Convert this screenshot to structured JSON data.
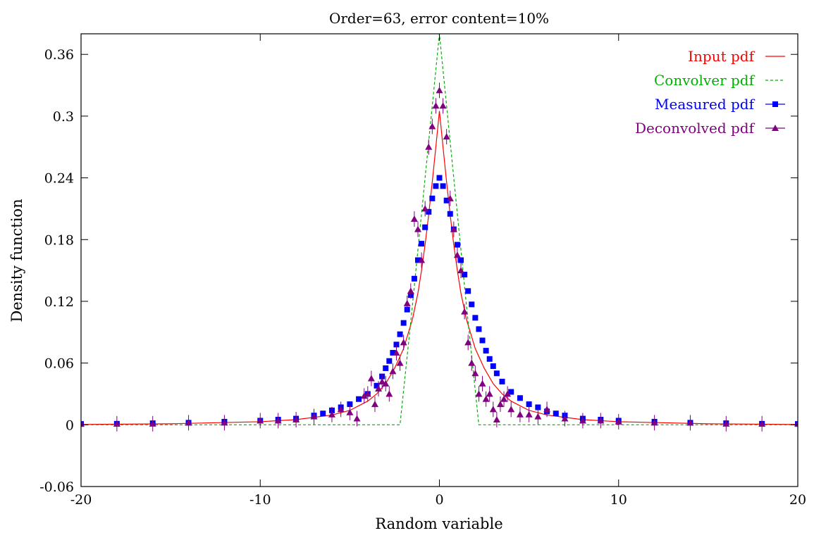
{
  "chart_data": {
    "type": "scatter",
    "title": "Order=63, error content=10%",
    "xlabel": "Random variable",
    "ylabel": "Density function",
    "xlim": [
      -20,
      20
    ],
    "ylim": [
      -0.06,
      0.38
    ],
    "xticks": [
      -20,
      -10,
      0,
      10,
      20
    ],
    "xtick_labels": [
      "-20",
      "-10",
      "0",
      "10",
      "20"
    ],
    "yticks": [
      -0.06,
      0,
      0.06,
      0.12,
      0.18,
      0.24,
      0.3,
      0.36
    ],
    "ytick_labels": [
      "-0.06",
      "0",
      "0.06",
      "0.12",
      "0.18",
      "0.24",
      "0.3",
      "0.36"
    ],
    "grid": false,
    "legend_position": "top-right",
    "series": [
      {
        "name": "Input pdf",
        "style": "line",
        "color": "#ff0000",
        "x": [
          -20,
          -15,
          -10,
          -8,
          -6,
          -5,
          -4,
          -3.5,
          -3,
          -2.5,
          -2,
          -1.5,
          -1.2,
          -1,
          -0.8,
          -0.6,
          -0.4,
          -0.2,
          0,
          0.2,
          0.4,
          0.6,
          0.8,
          1,
          1.2,
          1.5,
          2,
          2.5,
          3,
          3.5,
          4,
          5,
          6,
          8,
          10,
          15,
          20
        ],
        "y": [
          0.0003,
          0.001,
          0.003,
          0.005,
          0.0095,
          0.014,
          0.023,
          0.03,
          0.04,
          0.055,
          0.074,
          0.103,
          0.128,
          0.15,
          0.175,
          0.204,
          0.236,
          0.27,
          0.305,
          0.27,
          0.236,
          0.204,
          0.175,
          0.15,
          0.128,
          0.103,
          0.074,
          0.055,
          0.04,
          0.03,
          0.023,
          0.014,
          0.0095,
          0.005,
          0.003,
          0.001,
          0.0003
        ]
      },
      {
        "name": "Convolver pdf",
        "style": "dashed-line",
        "color": "#00b000",
        "x": [
          -20,
          -2.2,
          -1.6,
          -1.2,
          -0.8,
          -0.4,
          0,
          0.4,
          0.8,
          1.2,
          1.6,
          2.2,
          20
        ],
        "y": [
          0,
          0,
          0.1,
          0.17,
          0.24,
          0.31,
          0.38,
          0.31,
          0.24,
          0.17,
          0.1,
          0,
          0
        ]
      },
      {
        "name": "Measured pdf",
        "style": "squares",
        "color": "#0000ff",
        "x": [
          -20,
          -18,
          -16,
          -14,
          -12,
          -10,
          -9,
          -8,
          -7,
          -6.5,
          -6,
          -5.5,
          -5,
          -4.5,
          -4,
          -3.5,
          -3.2,
          -3,
          -2.8,
          -2.6,
          -2.4,
          -2.2,
          -2,
          -1.8,
          -1.6,
          -1.4,
          -1.2,
          -1,
          -0.8,
          -0.6,
          -0.4,
          -0.2,
          0,
          0.2,
          0.4,
          0.6,
          0.8,
          1,
          1.2,
          1.4,
          1.6,
          1.8,
          2,
          2.2,
          2.4,
          2.6,
          2.8,
          3,
          3.2,
          3.5,
          4,
          4.5,
          5,
          5.5,
          6,
          6.5,
          7,
          8,
          9,
          10,
          12,
          14,
          16,
          18,
          20
        ],
        "y": [
          0.0008,
          0.001,
          0.0015,
          0.002,
          0.003,
          0.004,
          0.005,
          0.006,
          0.009,
          0.011,
          0.014,
          0.017,
          0.02,
          0.025,
          0.03,
          0.038,
          0.047,
          0.055,
          0.062,
          0.07,
          0.078,
          0.088,
          0.099,
          0.112,
          0.126,
          0.142,
          0.16,
          0.176,
          0.192,
          0.207,
          0.22,
          0.232,
          0.24,
          0.232,
          0.218,
          0.205,
          0.19,
          0.175,
          0.16,
          0.146,
          0.13,
          0.117,
          0.104,
          0.093,
          0.082,
          0.072,
          0.064,
          0.057,
          0.05,
          0.042,
          0.032,
          0.026,
          0.02,
          0.017,
          0.013,
          0.011,
          0.009,
          0.006,
          0.005,
          0.004,
          0.003,
          0.002,
          0.0015,
          0.001,
          0.0008
        ]
      },
      {
        "name": "Deconvolved pdf",
        "style": "triangles",
        "color": "#800080",
        "x": [
          -20,
          -18,
          -16,
          -14,
          -12,
          -10,
          -9,
          -8,
          -7,
          -6,
          -5.5,
          -5,
          -4.6,
          -4.2,
          -4,
          -3.8,
          -3.6,
          -3.4,
          -3.2,
          -3,
          -2.8,
          -2.6,
          -2.4,
          -2.2,
          -2,
          -1.8,
          -1.6,
          -1.4,
          -1.2,
          -1,
          -0.8,
          -0.6,
          -0.4,
          -0.2,
          0,
          0.2,
          0.4,
          0.6,
          0.8,
          1,
          1.2,
          1.4,
          1.6,
          1.8,
          2,
          2.2,
          2.4,
          2.6,
          2.8,
          3,
          3.2,
          3.4,
          3.6,
          3.8,
          4,
          4.5,
          5,
          5.5,
          6,
          7,
          8,
          9,
          10,
          12,
          14,
          16,
          18,
          20
        ],
        "y": [
          0.001,
          0.001,
          0.001,
          0.002,
          0.002,
          0.004,
          0.004,
          0.005,
          0.008,
          0.01,
          0.015,
          0.012,
          0.006,
          0.028,
          0.03,
          0.045,
          0.02,
          0.035,
          0.042,
          0.04,
          0.03,
          0.052,
          0.07,
          0.06,
          0.08,
          0.118,
          0.13,
          0.2,
          0.19,
          0.16,
          0.21,
          0.27,
          0.29,
          0.31,
          0.325,
          0.31,
          0.28,
          0.22,
          0.19,
          0.165,
          0.15,
          0.11,
          0.08,
          0.06,
          0.05,
          0.03,
          0.04,
          0.025,
          0.03,
          0.015,
          0.005,
          0.02,
          0.025,
          0.03,
          0.015,
          0.01,
          0.01,
          0.008,
          0.015,
          0.006,
          0.004,
          0.004,
          0.003,
          0.002,
          0.002,
          0.001,
          0.001,
          0.001
        ]
      }
    ]
  }
}
